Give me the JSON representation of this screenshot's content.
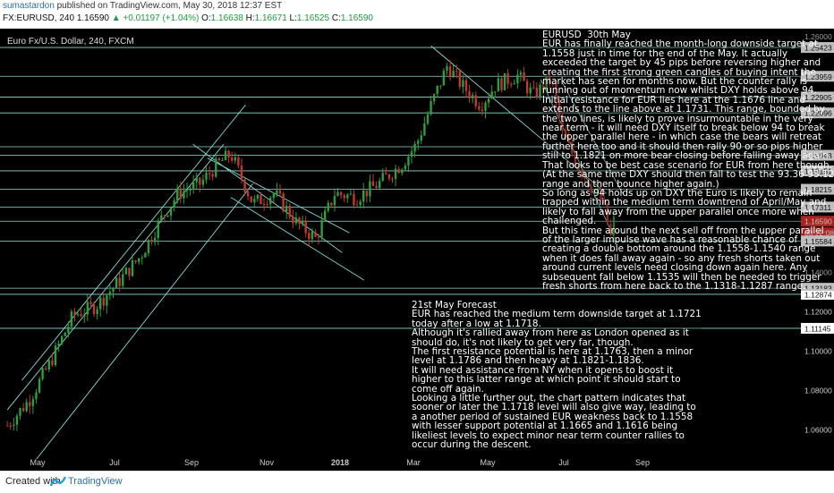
{
  "header": {
    "author": "sumastardon",
    "published": "published on TradingView.com, May 30, 2018 12:37 EST",
    "symbol": "FX:EURUSD, 240",
    "last": "1.16590",
    "change": "+0.01197 (+1.04%)",
    "o_label": "O:",
    "o": "1.16638",
    "h_label": "H:",
    "h": "1.16671",
    "l_label": "L:",
    "l": "1.16525",
    "c_label": "C:",
    "c": "1.16590"
  },
  "chart_title": "Euro Fx/U.S. Dollar, 240, FXCM",
  "footer": {
    "created": "Created with",
    "brand": "TradingView"
  },
  "colors": {
    "background": "#000000",
    "up": "#2e9e3e",
    "down": "#c0392b",
    "lines": "#7fdcd0",
    "accent": "#e0312b"
  },
  "notes": {
    "note1": [
      "EURUSD  30th May",
      "EUR has finally reached the month-long downside target at",
      "1.1558 just in time for the end of the May. It actually",
      "exceeded the target by 45 pips before reversing higher and",
      "creating the first strong green candles of buying intent the",
      "market has seen for months now. But the counter rally is",
      "running out of momentum now whilst DXY holds above 94.",
      "Initial resistance for EUR lies here at the 1.1676 line and",
      "extends to the line above at 1.1731. This range, bounded by",
      "the two lines, is likely to prove insurmountable in the very",
      "near term - it will need DXY itself to break below 94 to break",
      "the upper parallel here - in which case the bears will retreat",
      "further here too and it should then rally 90 or so pips higher",
      "still to 1.1821 on more bear closing before falling away again.",
      "That looks to be best case scenario for EUR from here though.",
      "(At the same time DXY should then fall to test the 93.36-93.12",
      "range and then bounce higher again.)",
      "So long as 94 holds up on DXY the Euro is likely to remain",
      "trapped within the medium term downtrend of April/May and",
      "likely to fall away from the upper parallel once more when",
      "challenged.",
      "But this time around the next sell off from the upper parallel",
      "of the larger impulse wave has a reasonable chance of",
      "creating a double bottom around the 1.1558-1.1540 range",
      "when it does fall away again - so any fresh shorts taken out",
      "around current levels need closing down again here. Any",
      "subsequent fall below 1.1535 will then be needed to trigger",
      "fresh shorts from here back to the 1.1318-1.1287 range."
    ],
    "note2": [
      "21st May Forecast",
      "EUR has reached the medium term downside target at 1.1721",
      "today after a low at 1.1718.",
      "Although it's rallied away from here as London opened as it",
      "should do, it's not likely to get very far, though.",
      "The first resistance potential is here at 1.1763, then a minor",
      "level at 1.1786 and then heavy at 1.1821-1.1836.",
      "It will need assistance from NY when it opens to boost it",
      "higher to this latter range at which point it should start to",
      "come off again.",
      "Looking a little further out, the chart pattern indicates that",
      "sooner or later the 1.1718 level will also give way, leading to",
      "a another period of sustained EUR weakness back to 1.1558",
      "with lesser support potential at 1.1665 and 1.1616 being",
      "likeliest levels to expect minor near term counter rallies to",
      "occur during the descent."
    ]
  },
  "chart_data": {
    "type": "line",
    "title": "Euro Fx/U.S. Dollar, 240, FXCM",
    "x_ticks": [
      "May",
      "Jul",
      "Sep",
      "Nov",
      "2018",
      "Mar",
      "May",
      "Jul",
      "Sep"
    ],
    "y_ticks": [
      "1.26000",
      "1.25423",
      "1.23959",
      "1.22905",
      "1.22096",
      "1.20000",
      "1.19943",
      "1.19151",
      "1.18215",
      "1.17311",
      "1.16590",
      "1.15584",
      "1.14000",
      "1.13183",
      "1.12874",
      "1.12000",
      "1.11145",
      "1.10000",
      "1.08000",
      "1.06000"
    ],
    "ylim": [
      1.05,
      1.262
    ],
    "last_price": 1.1659,
    "countdown": "03:22:08",
    "horizontal_levels": [
      1.25423,
      1.23959,
      1.22905,
      1.22096,
      1.20377,
      1.19943,
      1.19151,
      1.18215,
      1.17311,
      1.1659,
      1.15584,
      1.13183,
      1.12874,
      1.11145
    ],
    "series": [
      {
        "x": [
          "2017-04-10",
          "2017-04-25",
          "2017-05-10",
          "2017-05-25",
          "2017-06-10",
          "2017-06-25",
          "2017-07-10",
          "2017-07-25",
          "2017-08-05",
          "2017-08-20",
          "2017-09-01",
          "2017-09-10",
          "2017-09-25",
          "2017-10-10",
          "2017-10-25",
          "2017-11-07",
          "2017-11-20",
          "2017-12-05",
          "2017-12-20",
          "2018-01-05",
          "2018-01-15",
          "2018-01-25",
          "2018-02-05",
          "2018-02-15",
          "2018-02-28",
          "2018-03-10",
          "2018-03-25",
          "2018-04-05",
          "2018-04-17",
          "2018-04-25",
          "2018-05-05",
          "2018-05-15",
          "2018-05-22",
          "2018-05-29",
          "2018-05-30"
        ],
        "y": [
          1.062,
          1.075,
          1.095,
          1.118,
          1.123,
          1.135,
          1.148,
          1.168,
          1.18,
          1.185,
          1.195,
          1.2,
          1.175,
          1.18,
          1.165,
          1.157,
          1.18,
          1.178,
          1.185,
          1.195,
          1.205,
          1.225,
          1.245,
          1.235,
          1.225,
          1.235,
          1.24,
          1.23,
          1.238,
          1.21,
          1.195,
          1.183,
          1.176,
          1.154,
          1.1659
        ]
      }
    ]
  }
}
